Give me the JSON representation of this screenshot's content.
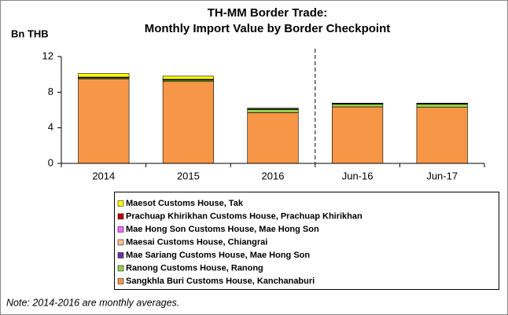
{
  "chart_data": {
    "type": "bar",
    "stacked": true,
    "title": "TH-MM Border Trade:",
    "subtitle": "Monthly Import Value by Border Checkpoint",
    "y_label": "Bn THB",
    "note": "Note: 2014-2016 are monthly averages.",
    "categories": [
      "2014",
      "2015",
      "2016",
      "Jun-16",
      "Jun-17"
    ],
    "series": [
      {
        "name": "Sangkhla Buri Customs House, Kanchanaburi",
        "color": "#f79646",
        "values": [
          9.5,
          9.2,
          5.7,
          6.35,
          6.3
        ]
      },
      {
        "name": "Ranong Customs House, Ranong",
        "color": "#92d050",
        "values": [
          0.1,
          0.15,
          0.35,
          0.3,
          0.35
        ]
      },
      {
        "name": "Mae Sariang Customs House, Mae Hong Son",
        "color": "#7030a0",
        "values": [
          0.02,
          0.02,
          0.02,
          0.02,
          0.02
        ]
      },
      {
        "name": "Maesai Customs House, Chiangrai",
        "color": "#fac090",
        "values": [
          0.05,
          0.05,
          0.03,
          0.02,
          0.02
        ]
      },
      {
        "name": "Mae Hong Son Customs House, Mae Hong Son",
        "color": "#ff66ff",
        "values": [
          0.01,
          0.01,
          0.01,
          0.01,
          0.01
        ]
      },
      {
        "name": "Prachuap Khirikhan Customs House, Prachuap Khirikhan",
        "color": "#c00000",
        "values": [
          0.02,
          0.02,
          0.02,
          0.02,
          0.02
        ]
      },
      {
        "name": "Maesot Customs House, Tak",
        "color": "#ffff00",
        "values": [
          0.4,
          0.35,
          0.08,
          0.05,
          0.05
        ]
      }
    ],
    "ylim": [
      0,
      12
    ],
    "yticks": [
      0,
      4,
      8,
      12
    ],
    "grid": false
  }
}
